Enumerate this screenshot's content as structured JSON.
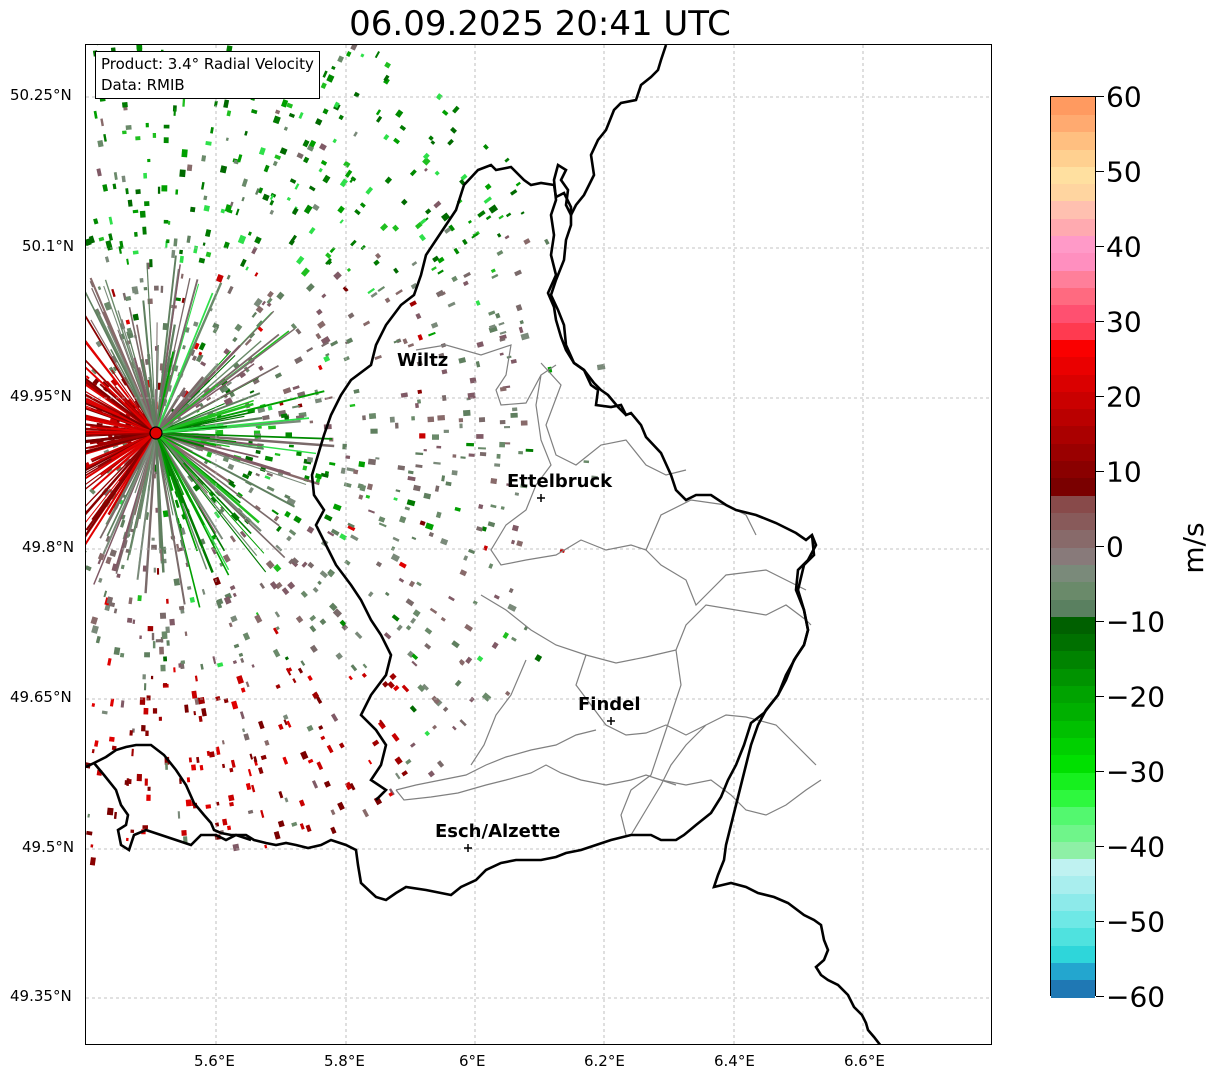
{
  "title": "06.09.2025 20:41 UTC",
  "info": {
    "product": "Product: 3.4° Radial Velocity",
    "data_source": "Data: RMIB"
  },
  "axes": {
    "lat_labels": [
      "50.25°N",
      "50.1°N",
      "49.95°N",
      "49.8°N",
      "49.65°N",
      "49.5°N",
      "49.35°N"
    ],
    "lon_labels": [
      "5.6°E",
      "5.8°E",
      "6°E",
      "6.2°E",
      "6.4°E",
      "6.6°E"
    ]
  },
  "cities": [
    {
      "name": "Wiltz"
    },
    {
      "name": "Ettelbruck"
    },
    {
      "name": "Findel"
    },
    {
      "name": "Esch/Alzette"
    }
  ],
  "colorbar": {
    "unit": "m/s",
    "tick_labels": [
      "60",
      "50",
      "40",
      "30",
      "20",
      "10",
      "0",
      "−10",
      "−20",
      "−30",
      "−40",
      "−50",
      "−60"
    ],
    "vmin": -60,
    "vmax": 60,
    "colors": [
      "#1f78b4",
      "#23a6cf",
      "#2ed6da",
      "#4fe2df",
      "#6ee8e6",
      "#8deaea",
      "#a9eeee",
      "#bff2f1",
      "#8ef0a6",
      "#6ff58a",
      "#53f86f",
      "#2ef83e",
      "#16f01e",
      "#00e000",
      "#00d000",
      "#00c000",
      "#00b000",
      "#00a300",
      "#009300",
      "#008300",
      "#007000",
      "#006000",
      "#5a8060",
      "#6a8a6a",
      "#7a8a7a",
      "#887a7a",
      "#886a6a",
      "#885a5a",
      "#884a4a",
      "#7a0000",
      "#8a0000",
      "#9a0000",
      "#aa0000",
      "#ba0000",
      "#ca0000",
      "#da0000",
      "#ea0000",
      "#fa0000",
      "#ff3a50",
      "#ff5070",
      "#ff6a80",
      "#ff7f9a",
      "#ff8fbf",
      "#ff9ac8",
      "#ffaab0",
      "#ffc0b0",
      "#ffd5a0",
      "#ffe0a0",
      "#ffd090",
      "#ffbf80",
      "#ffaa70",
      "#ff9a60"
    ]
  },
  "colors": {
    "border_major": "#000000",
    "border_minor": "#808080",
    "grid": "#b0b0b0",
    "radar_site": "#e00000"
  }
}
